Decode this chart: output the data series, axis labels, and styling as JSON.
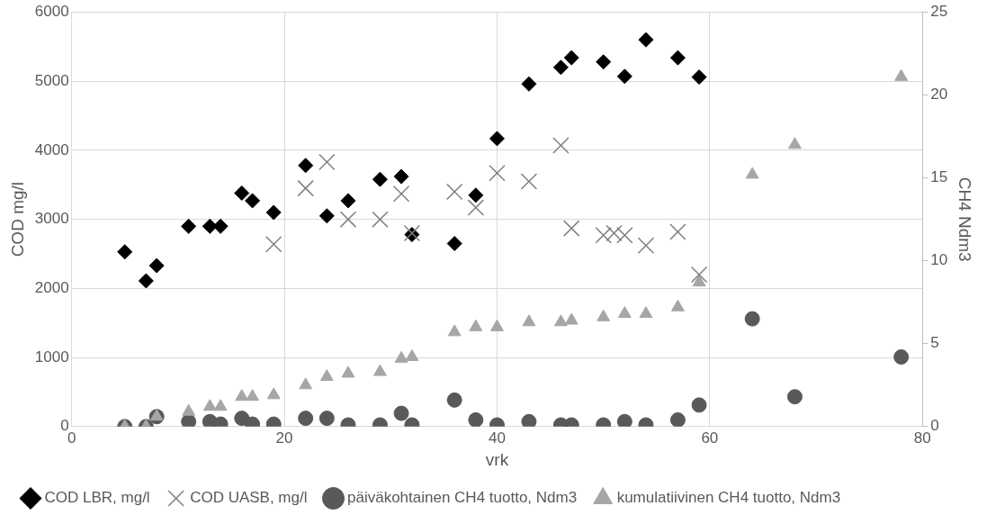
{
  "chart_data": {
    "type": "scatter",
    "xlabel": "vrk",
    "ylabel": "COD mg/l",
    "y2label": "CH4 Ndm3",
    "xlim": [
      0,
      80
    ],
    "xticks": [
      0,
      20,
      40,
      60,
      80
    ],
    "ylim": [
      0,
      6000
    ],
    "yticks": [
      0,
      1000,
      2000,
      3000,
      4000,
      5000,
      6000
    ],
    "y2lim": [
      0,
      25
    ],
    "y2ticks": [
      0,
      5,
      10,
      15,
      20,
      25
    ],
    "grid": true,
    "legend": "bottom",
    "series": [
      {
        "name": "COD LBR, mg/l",
        "color": "#000000",
        "marker": "diamond",
        "x": [
          5,
          7,
          8,
          11,
          13,
          14,
          16,
          17,
          19,
          22,
          24,
          26,
          29,
          31,
          32,
          36,
          38,
          40,
          43,
          46,
          47,
          50,
          52,
          54,
          57,
          59
        ],
        "values": [
          2530,
          2110,
          2330,
          2900,
          2900,
          2900,
          3380,
          3270,
          3100,
          3780,
          3050,
          3270,
          3580,
          3620,
          2780,
          2650,
          3350,
          4170,
          4960,
          5200,
          5340,
          5280,
          5070,
          5600,
          5340,
          5060
        ]
      },
      {
        "name": "COD UASB, mg/l",
        "color": "#7f7f7f",
        "marker": "cross",
        "x": [
          19,
          22,
          24,
          26,
          29,
          31,
          32,
          36,
          38,
          40,
          43,
          46,
          47,
          50,
          51,
          52,
          54,
          57,
          59
        ],
        "values": [
          2640,
          3450,
          3830,
          3000,
          3000,
          3370,
          2800,
          3400,
          3170,
          3670,
          3550,
          4070,
          2870,
          2770,
          2800,
          2770,
          2620,
          2820,
          2200
        ]
      },
      {
        "name": "päiväkohtainen CH4 tuotto, Ndm3",
        "color": "#595959",
        "marker": "circle",
        "axis": "y2",
        "x": [
          5,
          7,
          8,
          11,
          13,
          14,
          16,
          17,
          19,
          22,
          24,
          26,
          29,
          31,
          32,
          36,
          38,
          40,
          43,
          46,
          47,
          50,
          52,
          54,
          57,
          59,
          64,
          68,
          78
        ],
        "values": [
          0,
          0,
          0.6,
          0.3,
          0.3,
          0.15,
          0.5,
          0.15,
          0.15,
          0.5,
          0.5,
          0.1,
          0.1,
          0.8,
          0.1,
          1.6,
          0.4,
          0.1,
          0.3,
          0.1,
          0.1,
          0.1,
          0.3,
          0.1,
          0.4,
          1.3,
          6.5,
          1.8,
          4.2
        ]
      },
      {
        "name": "kumulatiivinen CH4 tuotto, Ndm3",
        "color": "#a6a6a6",
        "marker": "triangle",
        "axis": "y2",
        "x": [
          5,
          7,
          8,
          11,
          13,
          14,
          16,
          17,
          19,
          22,
          24,
          26,
          29,
          31,
          32,
          36,
          38,
          40,
          43,
          46,
          47,
          50,
          52,
          54,
          57,
          59,
          64,
          68,
          78
        ],
        "values": [
          0,
          0,
          0.6,
          0.9,
          1.2,
          1.2,
          1.8,
          1.8,
          1.9,
          2.5,
          3.0,
          3.2,
          3.3,
          4.1,
          4.2,
          5.7,
          6.0,
          6.0,
          6.3,
          6.3,
          6.4,
          6.6,
          6.8,
          6.8,
          7.2,
          8.7,
          15.2,
          17.0,
          21.1
        ]
      }
    ]
  }
}
